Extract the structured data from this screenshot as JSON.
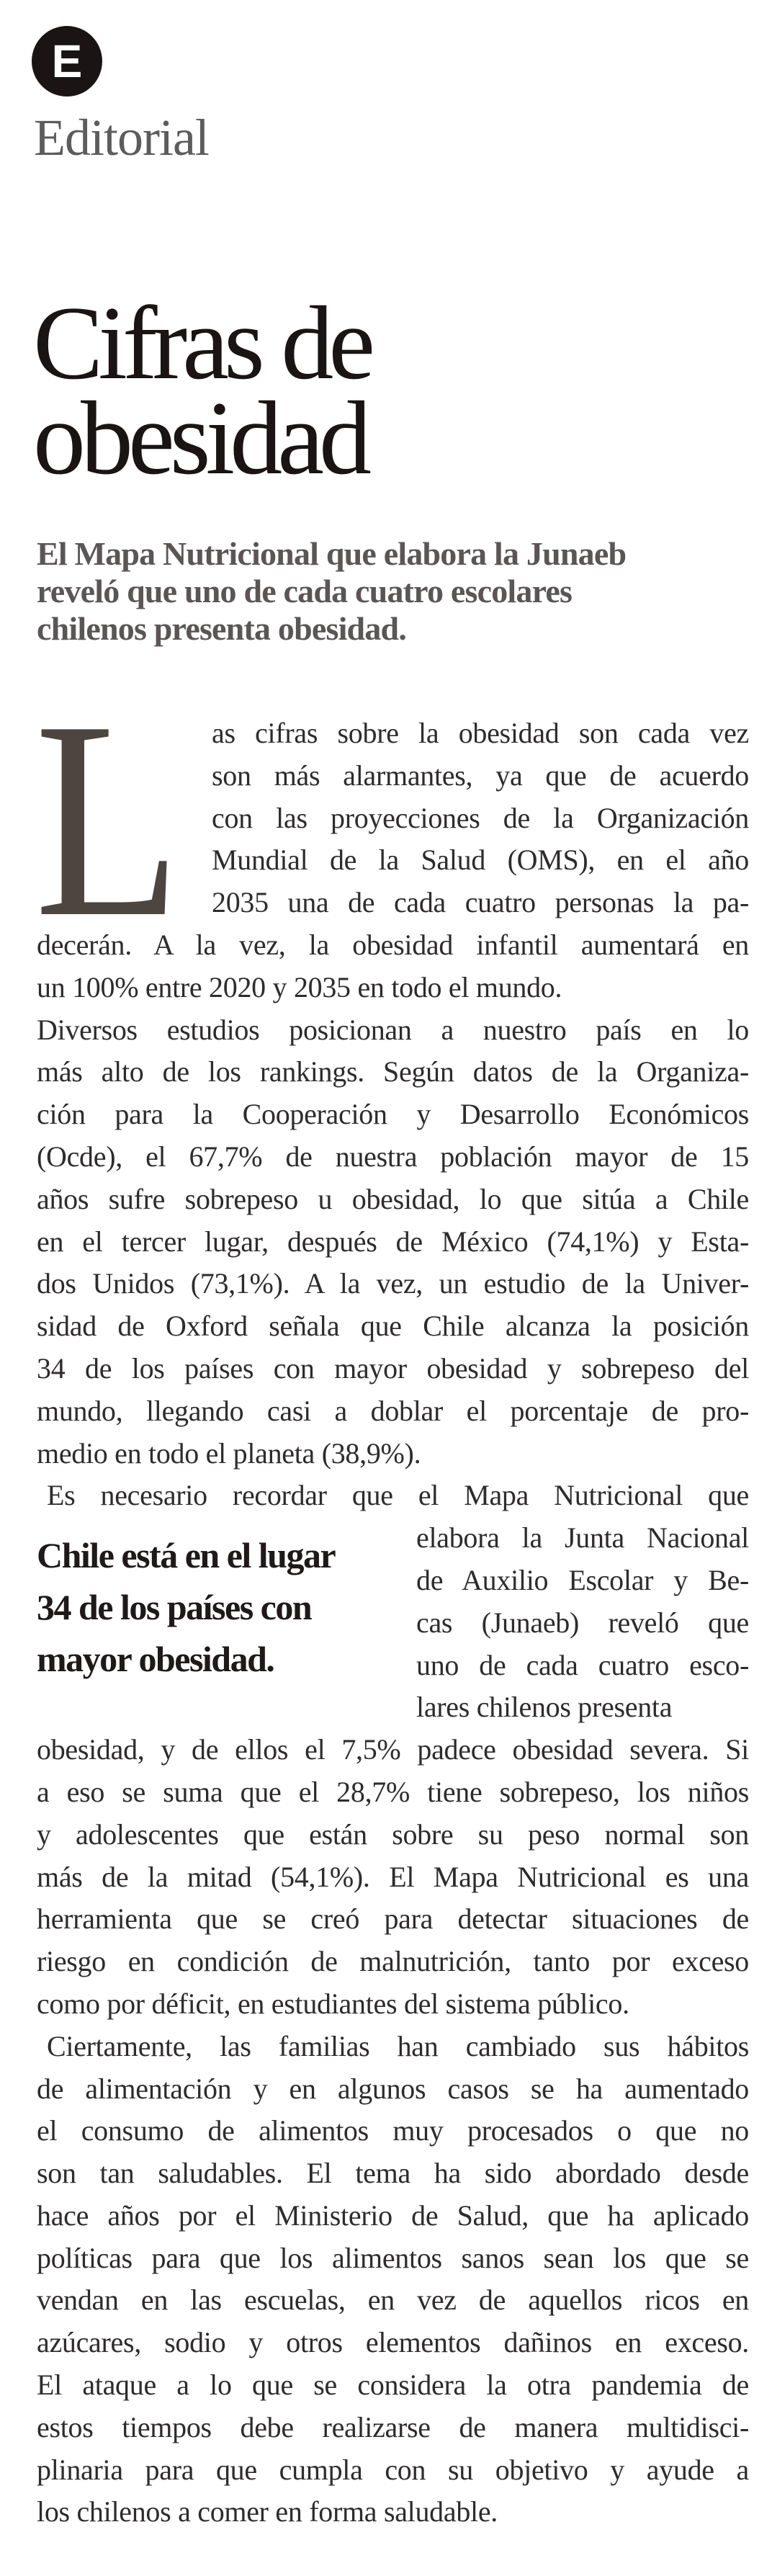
{
  "header": {
    "logo_letter": "E",
    "section": "Editorial"
  },
  "article": {
    "title_lines": [
      "Cifras de",
      "obesidad"
    ],
    "deck_lines": [
      "El Mapa Nutricional que elabora la Junaeb",
      "reveló que uno de cada cuatro escolares",
      "chilenos presenta obesidad."
    ],
    "drop_cap": "L",
    "body_lines": [
      "as cifras sobre la obesidad son cada vez",
      "son más alarmantes, ya que de acuerdo",
      "con las proyecciones de la Organización",
      "Mundial de la Salud (OMS), en el año",
      "2035 una de cada cuatro personas la pa-",
      "decerán. A la vez, la obesidad infantil aumentará en",
      "un 100% entre 2020 y 2035 en todo el mundo.",
      "Diversos estudios posicionan a nuestro país en lo",
      "más alto de los rankings. Según datos de la Organiza-",
      "ción para la Cooperación y Desarrollo Económicos",
      "(Ocde), el 67,7% de nuestra población mayor de 15",
      "años sufre sobrepeso u obesidad, lo que sitúa a Chile",
      "en el tercer lugar, después de México (74,1%) y Esta-",
      "dos Unidos (73,1%). A la vez, un estudio de la Univer-",
      "sidad de Oxford señala que Chile alcanza la posición",
      "34 de los países con mayor obesidad y sobrepeso del",
      "mundo, llegando casi a doblar el porcentaje de pro-",
      "medio en todo el planeta (38,9%).",
      "Es necesario recordar que el Mapa Nutricional que",
      "elabora la Junta Nacional",
      "de Auxilio Escolar y Be-",
      "cas (Junaeb) reveló que",
      "uno de cada cuatro esco-",
      "lares chilenos presenta",
      "obesidad, y de ellos el 7,5% padece obesidad severa. Si",
      "a eso se suma que el 28,7% tiene sobrepeso, los niños",
      "y adolescentes que están sobre su peso normal son",
      "más de la mitad (54,1%). El Mapa Nutricional es una",
      "herramienta que se creó para detectar situaciones de",
      "riesgo en condición de malnutrición, tanto por exceso",
      "como por déficit, en estudiantes del sistema público.",
      "Ciertamente, las familias han cambiado sus hábitos",
      "de alimentación y en algunos casos se ha aumentado",
      "el consumo de alimentos muy procesados o que no",
      "son tan saludables. El tema ha sido abordado desde",
      "hace años por el Ministerio de Salud, que ha aplicado",
      "políticas para que los alimentos sanos sean los que se",
      "vendan en las escuelas, en vez de aquellos ricos en",
      "azúcares, sodio y otros elementos dañinos en exceso.",
      "El ataque a lo que se considera la otra pandemia de",
      "estos tiempos debe realizarse de manera multidisci-",
      "plinaria para que cumpla con su objetivo y ayude a",
      "los chilenos a comer en forma saludable."
    ],
    "pull_quote_lines": [
      "Chile está en el lugar",
      "34 de los países con",
      "mayor obesidad."
    ]
  },
  "colors": {
    "logo_bg": "#1a1414",
    "drop_cap": "#4d4540",
    "deck": "#5a5656"
  }
}
